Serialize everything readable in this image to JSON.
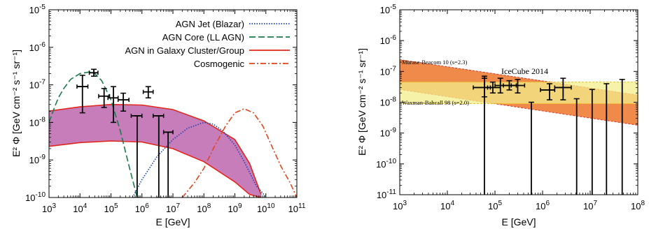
{
  "chart_data": [
    {
      "type": "line",
      "xlabel": "E [GeV]",
      "ylabel": "E² Φ [GeV cm⁻² s⁻¹ sr⁻¹]",
      "xscale": "log",
      "yscale": "log",
      "xlim": [
        1000,
        100000000000
      ],
      "ylim": [
        1e-10,
        1e-05
      ],
      "x_tick_exponents": [
        3,
        4,
        5,
        6,
        7,
        8,
        9,
        10,
        11
      ],
      "y_tick_exponents": [
        -10,
        -9,
        -8,
        -7,
        -6,
        -5
      ],
      "legend_position": "top-right",
      "series": [
        {
          "name": "AGN Jet (Blazar)",
          "style": "dotted",
          "color": "#1f3fb0",
          "x": [
            500000,
            1000000,
            3000000,
            10000000,
            30000000,
            100000000,
            200000000,
            400000000,
            1000000000,
            2000000000,
            5000000000,
            8000000000,
            10000000000
          ],
          "y": [
            1e-10,
            3e-10,
            1.2e-09,
            3.5e-09,
            7e-09,
            1e-08,
            9e-09,
            6e-09,
            2.5e-09,
            9e-10,
            2e-10,
            1.3e-10,
            1e-10
          ]
        },
        {
          "name": "AGN Core (LL AGN)",
          "style": "dashed",
          "color": "#1a7a4a",
          "x": [
            1000,
            1500,
            2000,
            3000,
            5000,
            10000,
            20000,
            30000,
            50000,
            100000,
            200000,
            400000,
            700000
          ],
          "y": [
            1e-08,
            2.5e-08,
            4.5e-08,
            8e-08,
            1.4e-07,
            2e-07,
            2.2e-07,
            2e-07,
            1.3e-07,
            4e-08,
            6e-09,
            6e-10,
            1e-10
          ]
        },
        {
          "name": "AGN in Galaxy Cluster/Group",
          "style": "band",
          "color": "#e0251b",
          "fill": "#c77dba",
          "x": [
            1000,
            10000,
            100000,
            1000000,
            10000000,
            100000000,
            1000000000,
            3000000000,
            7000000000
          ],
          "upper": [
            2e-08,
            2.6e-08,
            3e-08,
            2.9e-08,
            2.2e-08,
            1.1e-08,
            3.5e-09,
            8e-10,
            1.2e-10
          ],
          "lower": [
            2.3e-09,
            2.9e-09,
            3.2e-09,
            3e-09,
            2e-09,
            9e-10,
            2.6e-10,
            1.2e-10,
            1e-10
          ]
        },
        {
          "name": "Cosmogenic",
          "style": "dashdot",
          "color": "#e0451b",
          "x": [
            20000000,
            50000000,
            100000000,
            200000000,
            500000000,
            1000000000,
            2000000000,
            4000000000,
            8000000000,
            15000000000,
            30000000000,
            60000000000,
            100000000000
          ],
          "y": [
            1e-10,
            2.5e-10,
            6e-10,
            2e-09,
            8e-09,
            1.8e-08,
            2.3e-08,
            1.8e-08,
            8e-09,
            2.5e-09,
            7e-10,
            2.5e-10,
            1e-10
          ]
        }
      ],
      "data_points": [
        {
          "x": 12000,
          "y": 9e-08,
          "xlo": 8000,
          "xhi": 18000,
          "ylo": 1.8e-08,
          "yhi": 1.8e-07
        },
        {
          "x": 28000,
          "y": 2.1e-07,
          "xlo": 20000,
          "xhi": 38000,
          "ylo": 1.7e-07,
          "yhi": 2.6e-07
        },
        {
          "x": 60000,
          "y": 5e-08,
          "xlo": 40000,
          "xhi": 90000,
          "ylo": 2.5e-08,
          "yhi": 8e-08
        },
        {
          "x": 120000,
          "y": 4.5e-08,
          "xlo": 80000,
          "xhi": 170000,
          "ylo": 1e-08,
          "yhi": 9e-08
        },
        {
          "x": 250000,
          "y": 4e-08,
          "xlo": 170000,
          "xhi": 380000,
          "ylo": 2e-08,
          "yhi": 6e-08
        },
        {
          "x": 1600000,
          "y": 6.5e-08,
          "xlo": 1100000,
          "xhi": 2300000,
          "ylo": 4.5e-08,
          "yhi": 9e-08
        },
        {
          "x": 700000,
          "y": 1.5e-08,
          "xlo": 450000,
          "xhi": 1000000,
          "ylo": 1e-10,
          "yhi": 1.5e-08
        },
        {
          "x": 3500000,
          "y": 1.5e-08,
          "xlo": 2300000,
          "xhi": 5000000,
          "ylo": 1e-10,
          "yhi": 1.5e-08
        },
        {
          "x": 7000000,
          "y": 5.5e-09,
          "xlo": 5000000,
          "xhi": 10000000,
          "ylo": 1e-10,
          "yhi": 5.5e-09
        }
      ]
    },
    {
      "type": "line",
      "xlabel": "E [GeV]",
      "ylabel": "E² Φ [GeV cm⁻² s⁻¹ sr⁻¹]",
      "xscale": "log",
      "yscale": "log",
      "xlim": [
        1000,
        100000000
      ],
      "ylim": [
        1e-11,
        1e-05
      ],
      "x_tick_exponents": [
        3,
        4,
        5,
        6,
        7,
        8
      ],
      "y_tick_exponents": [
        -11,
        -10,
        -9,
        -8,
        -7,
        -6,
        -5
      ],
      "bands": [
        {
          "name": "Murase-Beacom 10 (s=2.3)",
          "color": "#f08a4b",
          "edge": "#d13a2a",
          "x": [
            1000,
            100000000
          ],
          "upper": [
            2.4e-07,
            1.7e-08
          ],
          "lower": [
            2.6e-08,
            1.8e-09
          ]
        },
        {
          "name": "Waxman-Bahcall 98 (s=2.0)",
          "color": "#f3ee8a",
          "edge": "#e8c31a",
          "x": [
            1000,
            100000000
          ],
          "upper": [
            4.5e-08,
            4.5e-08
          ],
          "lower": [
            9e-09,
            9e-09
          ]
        }
      ],
      "annotation": "IceCube 2014",
      "data_points": [
        {
          "x": 60000,
          "y": 3e-08,
          "xlo": 35000,
          "xhi": 80000,
          "ylo": 1.5e-08,
          "yhi": 6e-08
        },
        {
          "x": 90000,
          "y": 3e-08,
          "xlo": 70000,
          "xhi": 130000,
          "ylo": 2e-08,
          "yhi": 4.5e-08
        },
        {
          "x": 130000,
          "y": 3.5e-08,
          "xlo": 100000,
          "xhi": 200000,
          "ylo": 2e-08,
          "yhi": 6e-08
        },
        {
          "x": 200000,
          "y": 3.5e-08,
          "xlo": 150000,
          "xhi": 280000,
          "ylo": 2.5e-08,
          "yhi": 5e-08
        },
        {
          "x": 300000,
          "y": 3.5e-08,
          "xlo": 220000,
          "xhi": 420000,
          "ylo": 2e-08,
          "yhi": 5.5e-08
        },
        {
          "x": 1400000,
          "y": 2.5e-08,
          "xlo": 900000,
          "xhi": 1800000,
          "ylo": 1.2e-08,
          "yhi": 4e-08
        },
        {
          "x": 2700000,
          "y": 3e-08,
          "xlo": 1800000,
          "xhi": 4000000,
          "ylo": 1.2e-08,
          "yhi": 6e-08
        }
      ],
      "upper_limits": [
        {
          "x": 60000,
          "y": 7e-08
        },
        {
          "x": 580000,
          "y": 1e-08
        },
        {
          "x": 5200000,
          "y": 1.3e-08
        },
        {
          "x": 11000000,
          "y": 2.6e-08
        },
        {
          "x": 22000000,
          "y": 4e-08
        },
        {
          "x": 47000000,
          "y": 5.5e-08
        }
      ]
    }
  ]
}
